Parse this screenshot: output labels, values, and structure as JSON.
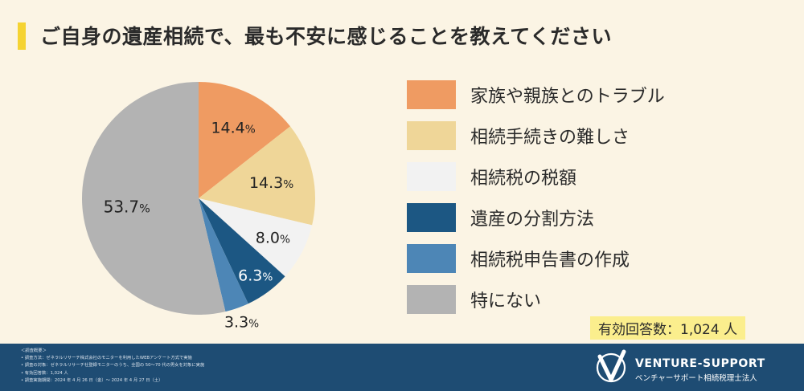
{
  "title": "ご自身の遺産相続で、最も不安に感じることを教えてください",
  "chart_data": {
    "type": "pie",
    "categories": [
      "家族や親族とのトラブル",
      "相続手続きの難しさ",
      "相続税の税額",
      "遺産の分割方法",
      "相続税申告書の作成",
      "特にない"
    ],
    "values": [
      14.4,
      14.3,
      8.0,
      6.3,
      3.3,
      53.7
    ],
    "value_labels": [
      "14.4",
      "14.3",
      "8.0",
      "6.3",
      "3.3",
      "53.7"
    ],
    "unit": "%",
    "colors": [
      "#ef9b62",
      "#efd698",
      "#f2f2f2",
      "#1c5783",
      "#4d86b6",
      "#b3b3b3"
    ],
    "start": "top",
    "direction": "clockwise"
  },
  "respondents": "有効回答数：1,024 人",
  "footer": {
    "notes": [
      "＜調査概要＞",
      "• 調査方法：ゼネラルリサーチ株式会社のモニターを利用したWEBアンケート方式で実施",
      "• 調査の対象：ゼネラルリサーチ社登録モニターのうち、全国の 50～70 代の男女を対象に実施",
      "• 有効回答数：1,024 人",
      "• 調査実施期間：2024 年 4 月 26 日（金）～ 2024 年 4 月 27 日（土）"
    ],
    "logo_name": "VENTURE-SUPPORT",
    "logo_sub": "ベンチャーサポート相続税理士法人"
  }
}
